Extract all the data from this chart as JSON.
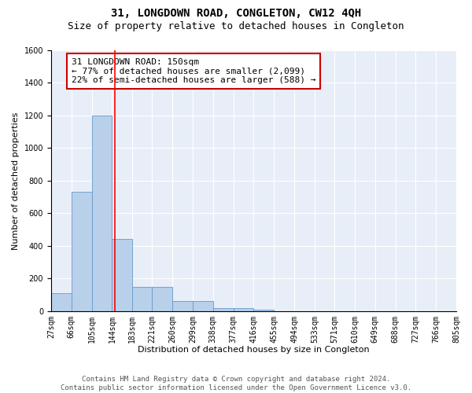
{
  "title": "31, LONGDOWN ROAD, CONGLETON, CW12 4QH",
  "subtitle": "Size of property relative to detached houses in Congleton",
  "xlabel": "Distribution of detached houses by size in Congleton",
  "ylabel": "Number of detached properties",
  "bin_edges": [
    27,
    66,
    105,
    144,
    183,
    221,
    260,
    299,
    338,
    377,
    416,
    455,
    494,
    533,
    571,
    610,
    649,
    688,
    727,
    766,
    805
  ],
  "bar_heights": [
    110,
    730,
    1200,
    440,
    150,
    150,
    60,
    60,
    20,
    20,
    10,
    0,
    0,
    0,
    0,
    0,
    0,
    0,
    0,
    0
  ],
  "bar_color": "#b8d0ea",
  "bar_edge_color": "#6699cc",
  "background_color": "#e8eef8",
  "grid_color": "#ffffff",
  "red_line_x": 150,
  "annotation_text": "31 LONGDOWN ROAD: 150sqm\n← 77% of detached houses are smaller (2,099)\n22% of semi-detached houses are larger (588) →",
  "annotation_box_color": "#ffffff",
  "annotation_box_edge_color": "#cc0000",
  "ylim": [
    0,
    1600
  ],
  "yticks": [
    0,
    200,
    400,
    600,
    800,
    1000,
    1200,
    1400,
    1600
  ],
  "tick_labels": [
    "27sqm",
    "66sqm",
    "105sqm",
    "144sqm",
    "183sqm",
    "221sqm",
    "260sqm",
    "299sqm",
    "338sqm",
    "377sqm",
    "416sqm",
    "455sqm",
    "494sqm",
    "533sqm",
    "571sqm",
    "610sqm",
    "649sqm",
    "688sqm",
    "727sqm",
    "766sqm",
    "805sqm"
  ],
  "footer_text": "Contains HM Land Registry data © Crown copyright and database right 2024.\nContains public sector information licensed under the Open Government Licence v3.0.",
  "title_fontsize": 10,
  "subtitle_fontsize": 9,
  "axis_label_fontsize": 8,
  "tick_fontsize": 7,
  "annotation_fontsize": 8,
  "footer_fontsize": 6.5
}
